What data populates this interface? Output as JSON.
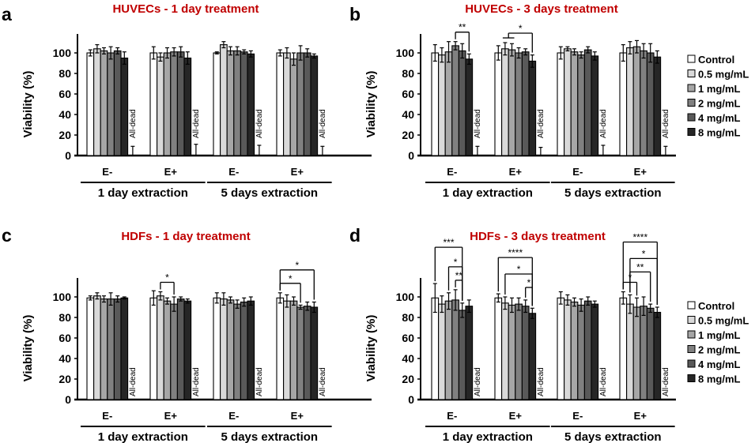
{
  "figure": {
    "legend": {
      "entries": [
        {
          "label": "Control",
          "color": "#ffffff"
        },
        {
          "label": "0.5 mg/mL",
          "color": "#d9d9d9"
        },
        {
          "label": "1 mg/mL",
          "color": "#a6a6a6"
        },
        {
          "label": "2 mg/mL",
          "color": "#808080"
        },
        {
          "label": "4 mg/mL",
          "color": "#595959"
        },
        {
          "label": "8 mg/mL",
          "color": "#262626"
        }
      ]
    },
    "title_color": "#c00000"
  },
  "chart_data": [
    {
      "panel": "a",
      "type": "bar",
      "title": "HUVECs - 1 day treatment",
      "ylabel": "Viability (%)",
      "xlabel": "",
      "ylim": [
        0,
        118
      ],
      "yticks": [
        0,
        20,
        40,
        60,
        80,
        100
      ],
      "legend": false,
      "extraction_groups": [
        "1 day extraction",
        "5 days extraction"
      ],
      "categories": [
        "E-",
        "E+",
        "E-",
        "E+"
      ],
      "dead_label": "All-dead",
      "dead_marker": true,
      "dead_error": [
        9,
        11,
        10,
        9
      ],
      "series": [
        {
          "name": "Control",
          "values": [
            100,
            100,
            100,
            100
          ],
          "errors": [
            3,
            6,
            1,
            3
          ]
        },
        {
          "name": "0.5 mg/mL",
          "values": [
            104,
            96,
            108,
            100
          ],
          "errors": [
            4,
            4,
            3,
            5
          ]
        },
        {
          "name": "1 mg/mL",
          "values": [
            102,
            100,
            102,
            94
          ],
          "errors": [
            3,
            5,
            4,
            6
          ]
        },
        {
          "name": "2 mg/mL",
          "values": [
            100,
            101,
            102,
            100
          ],
          "errors": [
            6,
            4,
            4,
            7
          ]
        },
        {
          "name": "4 mg/mL",
          "values": [
            102,
            101,
            101,
            100
          ],
          "errors": [
            3,
            5,
            2,
            4
          ]
        },
        {
          "name": "8 mg/mL",
          "values": [
            95,
            95,
            99,
            97
          ],
          "errors": [
            6,
            6,
            3,
            2
          ]
        }
      ],
      "significance": []
    },
    {
      "panel": "b",
      "type": "bar",
      "title": "HUVECs - 3 days treatment",
      "ylabel": "Viability (%)",
      "xlabel": "",
      "ylim": [
        0,
        118
      ],
      "yticks": [
        0,
        20,
        40,
        60,
        80,
        100
      ],
      "legend": true,
      "extraction_groups": [
        "1 day extraction",
        "5 days extraction"
      ],
      "categories": [
        "E-",
        "E+",
        "E-",
        "E+"
      ],
      "dead_label": "All-dead",
      "dead_marker": true,
      "dead_error": [
        9,
        8,
        10,
        9
      ],
      "series": [
        {
          "name": "Control",
          "values": [
            100,
            100,
            100,
            100
          ],
          "errors": [
            8,
            7,
            6,
            8
          ]
        },
        {
          "name": "0.5 mg/mL",
          "values": [
            98,
            104,
            104,
            105
          ],
          "errors": [
            7,
            6,
            2,
            6
          ]
        },
        {
          "name": "1 mg/mL",
          "values": [
            101,
            103,
            101,
            106
          ],
          "errors": [
            10,
            6,
            3,
            6
          ]
        },
        {
          "name": "2 mg/mL",
          "values": [
            107,
            100,
            98,
            102
          ],
          "errors": [
            4,
            5,
            3,
            7
          ]
        },
        {
          "name": "4 mg/mL",
          "values": [
            102,
            101,
            103,
            100
          ],
          "errors": [
            7,
            3,
            3,
            9
          ]
        },
        {
          "name": "8 mg/mL",
          "values": [
            94,
            92,
            97,
            96
          ],
          "errors": [
            5,
            6,
            4,
            6
          ]
        }
      ],
      "significance": [
        {
          "group": 0,
          "from": 3,
          "to": 5,
          "label": "**",
          "level": 0
        },
        {
          "group": 1,
          "from": 1.5,
          "to": 5,
          "label": "*",
          "level": 0,
          "from_span": [
            1,
            2
          ]
        }
      ]
    },
    {
      "panel": "c",
      "type": "bar",
      "title": "HDFs - 1 day treatment",
      "ylabel": "Viability (%)",
      "xlabel": "",
      "ylim": [
        0,
        118
      ],
      "yticks": [
        0,
        20,
        40,
        60,
        80,
        100
      ],
      "legend": false,
      "extraction_groups": [
        "1 day extraction",
        "5 days extraction"
      ],
      "categories": [
        "E-",
        "E+",
        "E-",
        "E+"
      ],
      "dead_label": "All-dead",
      "dead_marker": false,
      "dead_error": [
        0,
        0,
        0,
        0
      ],
      "series": [
        {
          "name": "Control",
          "values": [
            99,
            99,
            99,
            99
          ],
          "errors": [
            2,
            7,
            5,
            5
          ]
        },
        {
          "name": "0.5 mg/mL",
          "values": [
            101,
            101,
            98,
            96
          ],
          "errors": [
            3,
            4,
            6,
            6
          ]
        },
        {
          "name": "1 mg/mL",
          "values": [
            98,
            96,
            97,
            96
          ],
          "errors": [
            3,
            3,
            3,
            4
          ]
        },
        {
          "name": "2 mg/mL",
          "values": [
            98,
            93,
            93,
            90
          ],
          "errors": [
            6,
            7,
            4,
            2
          ]
        },
        {
          "name": "4 mg/mL",
          "values": [
            98,
            98,
            95,
            91
          ],
          "errors": [
            3,
            2,
            4,
            4
          ]
        },
        {
          "name": "8 mg/mL",
          "values": [
            99,
            96,
            96,
            90
          ],
          "errors": [
            1,
            2,
            4,
            5
          ]
        }
      ],
      "significance": [
        {
          "group": 1,
          "from": 1,
          "to": 3,
          "label": "*",
          "level": 0
        },
        {
          "group": 3,
          "from": 0,
          "to": 3,
          "label": "*",
          "level": 0
        },
        {
          "group": 3,
          "from": 0,
          "to": 5,
          "label": "*",
          "level": 1
        }
      ]
    },
    {
      "panel": "d",
      "type": "bar",
      "title": "HDFs - 3 days treatment",
      "ylabel": "Viability (%)",
      "xlabel": "",
      "ylim": [
        0,
        118
      ],
      "yticks": [
        0,
        20,
        40,
        60,
        80,
        100
      ],
      "legend": true,
      "extraction_groups": [
        "1 day extraction",
        "5 days extraction"
      ],
      "categories": [
        "E-",
        "E+",
        "E-",
        "E+"
      ],
      "dead_label": "All-dead",
      "dead_marker": false,
      "dead_error": [
        0,
        0,
        0,
        0
      ],
      "series": [
        {
          "name": "Control",
          "values": [
            99,
            99,
            99,
            99
          ],
          "errors": [
            14,
            4,
            6,
            6
          ]
        },
        {
          "name": "0.5 mg/mL",
          "values": [
            93,
            94,
            97,
            93
          ],
          "errors": [
            8,
            6,
            5,
            9
          ]
        },
        {
          "name": "1 mg/mL",
          "values": [
            96,
            92,
            95,
            90
          ],
          "errors": [
            8,
            7,
            4,
            9
          ]
        },
        {
          "name": "2 mg/mL",
          "values": [
            97,
            93,
            92,
            91
          ],
          "errors": [
            10,
            6,
            6,
            9
          ]
        },
        {
          "name": "4 mg/mL",
          "values": [
            87,
            91,
            96,
            89
          ],
          "errors": [
            7,
            6,
            4,
            4
          ]
        },
        {
          "name": "8 mg/mL",
          "values": [
            91,
            84,
            93,
            85
          ],
          "errors": [
            6,
            5,
            3,
            5
          ]
        }
      ],
      "significance": [
        {
          "group": 0,
          "from": 3,
          "to": 4,
          "label": "**",
          "level": 0
        },
        {
          "group": 0,
          "from": 2,
          "to": 4,
          "label": "*",
          "level": 1
        },
        {
          "group": 0,
          "from": 0,
          "to": 4,
          "label": "***",
          "level": 2
        },
        {
          "group": 1,
          "from": 4,
          "to": 5,
          "label": "*",
          "level": 0
        },
        {
          "group": 1,
          "from": 1,
          "to": 5,
          "label": "*",
          "level": 1
        },
        {
          "group": 1,
          "from": 0,
          "to": 5,
          "label": "****",
          "level": 2
        },
        {
          "group": 3,
          "from": 0,
          "to": 2,
          "label": "*",
          "level": 0
        },
        {
          "group": 3,
          "from": 1,
          "to": 4,
          "label": "**",
          "level": 1
        },
        {
          "group": 3,
          "from": 1,
          "to": 5,
          "label": "*",
          "level": 2
        },
        {
          "group": 3,
          "from": 0,
          "to": 5,
          "label": "****",
          "level": 3
        }
      ]
    }
  ]
}
